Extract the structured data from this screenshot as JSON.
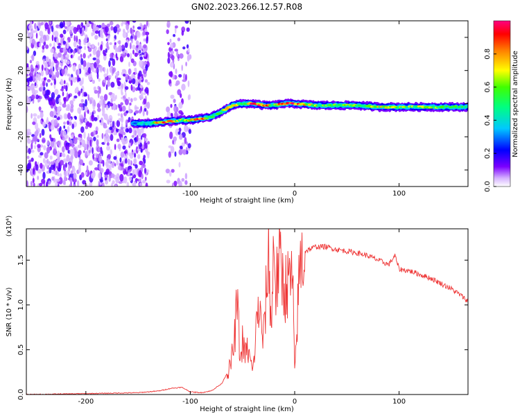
{
  "figure": {
    "title": "GN02.2023.266.12.57.R08"
  },
  "chart_data": [
    {
      "type": "heatmap",
      "title": "GN02.2023.266.12.57.R08",
      "xlabel": "Height of straight line (km)",
      "ylabel": "Frequency (Hz)",
      "xlim": [
        -257,
        166
      ],
      "ylim": [
        -50,
        50
      ],
      "xticks": [
        -200,
        -100,
        0,
        100
      ],
      "yticks": [
        -40,
        -20,
        0,
        20,
        40
      ],
      "colorbar": {
        "label": "Normalized spectral amplitude",
        "range": [
          0,
          1
        ],
        "ticks": [
          "0.0",
          "0.2",
          "0.4",
          "0.6",
          "0.8"
        ],
        "colormap": [
          "#ffffff",
          "#7b00ff",
          "#0000ff",
          "#00c8ff",
          "#00ff40",
          "#b4ff00",
          "#ffff00",
          "#ff8000",
          "#ff0000",
          "#ff0080"
        ]
      },
      "ridge": {
        "x": [
          -155,
          -140,
          -125,
          -110,
          -100,
          -90,
          -80,
          -70,
          -60,
          -50,
          -40,
          -30,
          -20,
          -10,
          0,
          20,
          40,
          60,
          80,
          100,
          120,
          140,
          166
        ],
        "freq": [
          -12,
          -12,
          -11,
          -10,
          -10,
          -9,
          -8,
          -5,
          -1,
          0,
          0,
          -1,
          -1,
          0,
          0,
          -1,
          -1,
          -1,
          -2,
          -2,
          -2,
          -2,
          -2
        ],
        "amplitude": [
          0.35,
          0.45,
          0.9,
          0.6,
          0.7,
          0.9,
          0.5,
          0.55,
          0.8,
          0.6,
          0.85,
          0.9,
          0.6,
          0.9,
          0.95,
          0.6,
          0.55,
          0.6,
          0.7,
          0.6,
          0.6,
          0.55,
          0.5
        ]
      },
      "noise_regions": [
        {
          "x_range": [
            -257,
            -140
          ],
          "note": ""
        },
        {
          "x_range": [
            -122,
            -100
          ],
          "note": ""
        }
      ]
    },
    {
      "type": "line",
      "xlabel": "Height of straight line (km)",
      "ylabel": "SNR (10 * v/v)",
      "yscale_label": "(x10⁴)",
      "xlim": [
        -257,
        166
      ],
      "ylim": [
        0,
        1.85
      ],
      "xticks": [
        -200,
        -100,
        0,
        100
      ],
      "yticks": [
        "0.0",
        "0.5",
        "1.0",
        "1.5"
      ],
      "series": [
        {
          "color": "#ee3333",
          "x": [
            -257,
            -200,
            -150,
            -130,
            -118,
            -108,
            -100,
            -90,
            -80,
            -70,
            -62,
            -58,
            -55,
            -52,
            -50,
            -48,
            -45,
            -40,
            -35,
            -30,
            -25,
            -22,
            -20,
            -18,
            -15,
            -10,
            -5,
            -2,
            0,
            5,
            10,
            20,
            30,
            40,
            50,
            60,
            70,
            80,
            90,
            96,
            100,
            110,
            120,
            130,
            140,
            150,
            160,
            166
          ],
          "y": [
            0.0,
            0.01,
            0.02,
            0.04,
            0.07,
            0.08,
            0.03,
            0.02,
            0.04,
            0.12,
            0.3,
            0.55,
            1.05,
            0.35,
            0.6,
            0.45,
            0.5,
            0.25,
            1.0,
            0.6,
            1.55,
            0.7,
            1.85,
            1.15,
            1.5,
            1.2,
            1.25,
            1.3,
            0.22,
            1.45,
            1.6,
            1.65,
            1.65,
            1.62,
            1.6,
            1.58,
            1.55,
            1.5,
            1.45,
            1.55,
            1.4,
            1.38,
            1.34,
            1.3,
            1.24,
            1.18,
            1.1,
            1.04
          ]
        }
      ]
    }
  ]
}
